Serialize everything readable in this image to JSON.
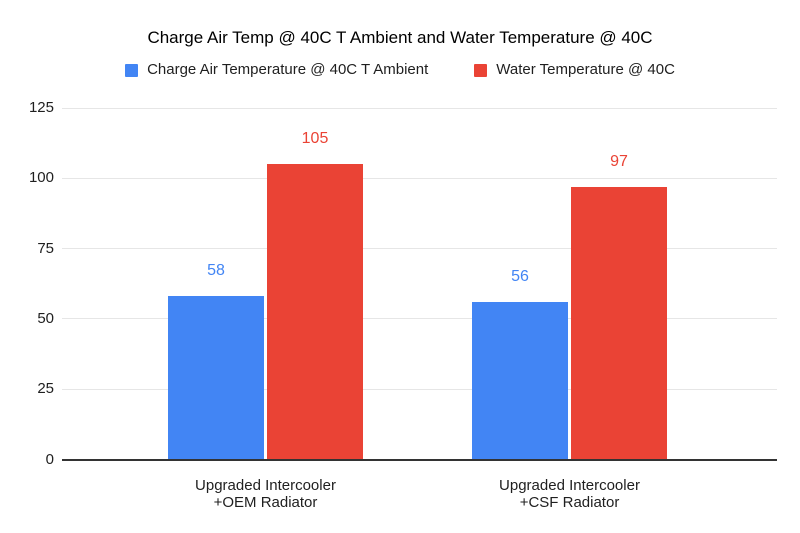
{
  "chart_data": {
    "type": "bar",
    "title": "Charge Air Temp @ 40C T Ambient and Water Temperature @ 40C",
    "categories": [
      "Upgraded Intercooler\n+OEM Radiator",
      "Upgraded Intercooler\n+CSF Radiator"
    ],
    "series": [
      {
        "name": "Charge Air Temperature @ 40C T Ambient",
        "color": "#4285F4",
        "values": [
          58,
          56
        ]
      },
      {
        "name": "Water Temperature @ 40C",
        "color": "#EA4335",
        "values": [
          105,
          97
        ]
      }
    ],
    "yticks": [
      0,
      25,
      50,
      75,
      100,
      125
    ],
    "ylim": [
      0,
      125
    ],
    "grid": true,
    "legend_position": "top",
    "value_labels": true
  },
  "colors": {
    "background": "#ffffff",
    "gridline": "#e6e6e6",
    "axis_line": "#333333",
    "title_text": "#000000",
    "tick_text": "#1f1f1f",
    "category_text": "#1f1f1f"
  }
}
